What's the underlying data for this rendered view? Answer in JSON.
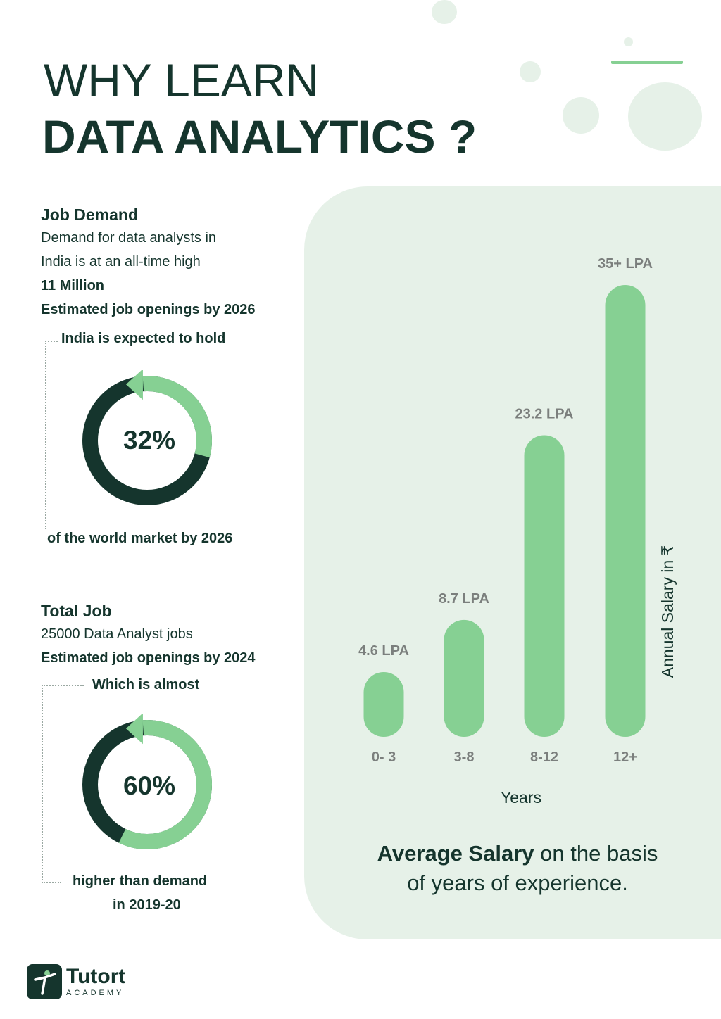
{
  "header": {
    "line1": "WHY LEARN",
    "line2": "DATA ANALYTICS ?"
  },
  "job_demand": {
    "heading": "Job Demand",
    "desc_1": "Demand for data analysts in",
    "desc_2": "India is at an all-time high",
    "figure": "11 Million",
    "figure_note": "Estimated job openings by 2026",
    "lead": "India is expected to hold",
    "donut_label": "32%",
    "donut_value": 0.32,
    "tail": "of the world market by 2026"
  },
  "total_job": {
    "heading": "Total Job",
    "desc": "25000 Data Analyst jobs",
    "figure_note": "Estimated job openings by 2024",
    "lead": "Which is almost",
    "donut_label": "60%",
    "donut_value": 0.6,
    "tail_1": "higher than demand",
    "tail_2": "in 2019-20"
  },
  "colors": {
    "dark": "#15352d",
    "green": "#86d093",
    "panel": "#e6f1e8",
    "label_gray": "#7b7f7d"
  },
  "chart_data": {
    "type": "bar",
    "categories": [
      "0- 3",
      "3-8",
      "8-12",
      "12+"
    ],
    "values": [
      4.6,
      8.7,
      23.2,
      35
    ],
    "data_labels": [
      "4.6 LPA",
      "8.7 LPA",
      "23.2 LPA",
      "35+ LPA"
    ],
    "xlabel": "Years",
    "ylabel": "Annual Salary in ₹",
    "grid": false
  },
  "caption": {
    "bold": "Average Salary",
    "rest_1": " on the basis",
    "rest_2": "of years of experience."
  },
  "logo": {
    "name": "Tutort",
    "sub": "ACADEMY"
  }
}
